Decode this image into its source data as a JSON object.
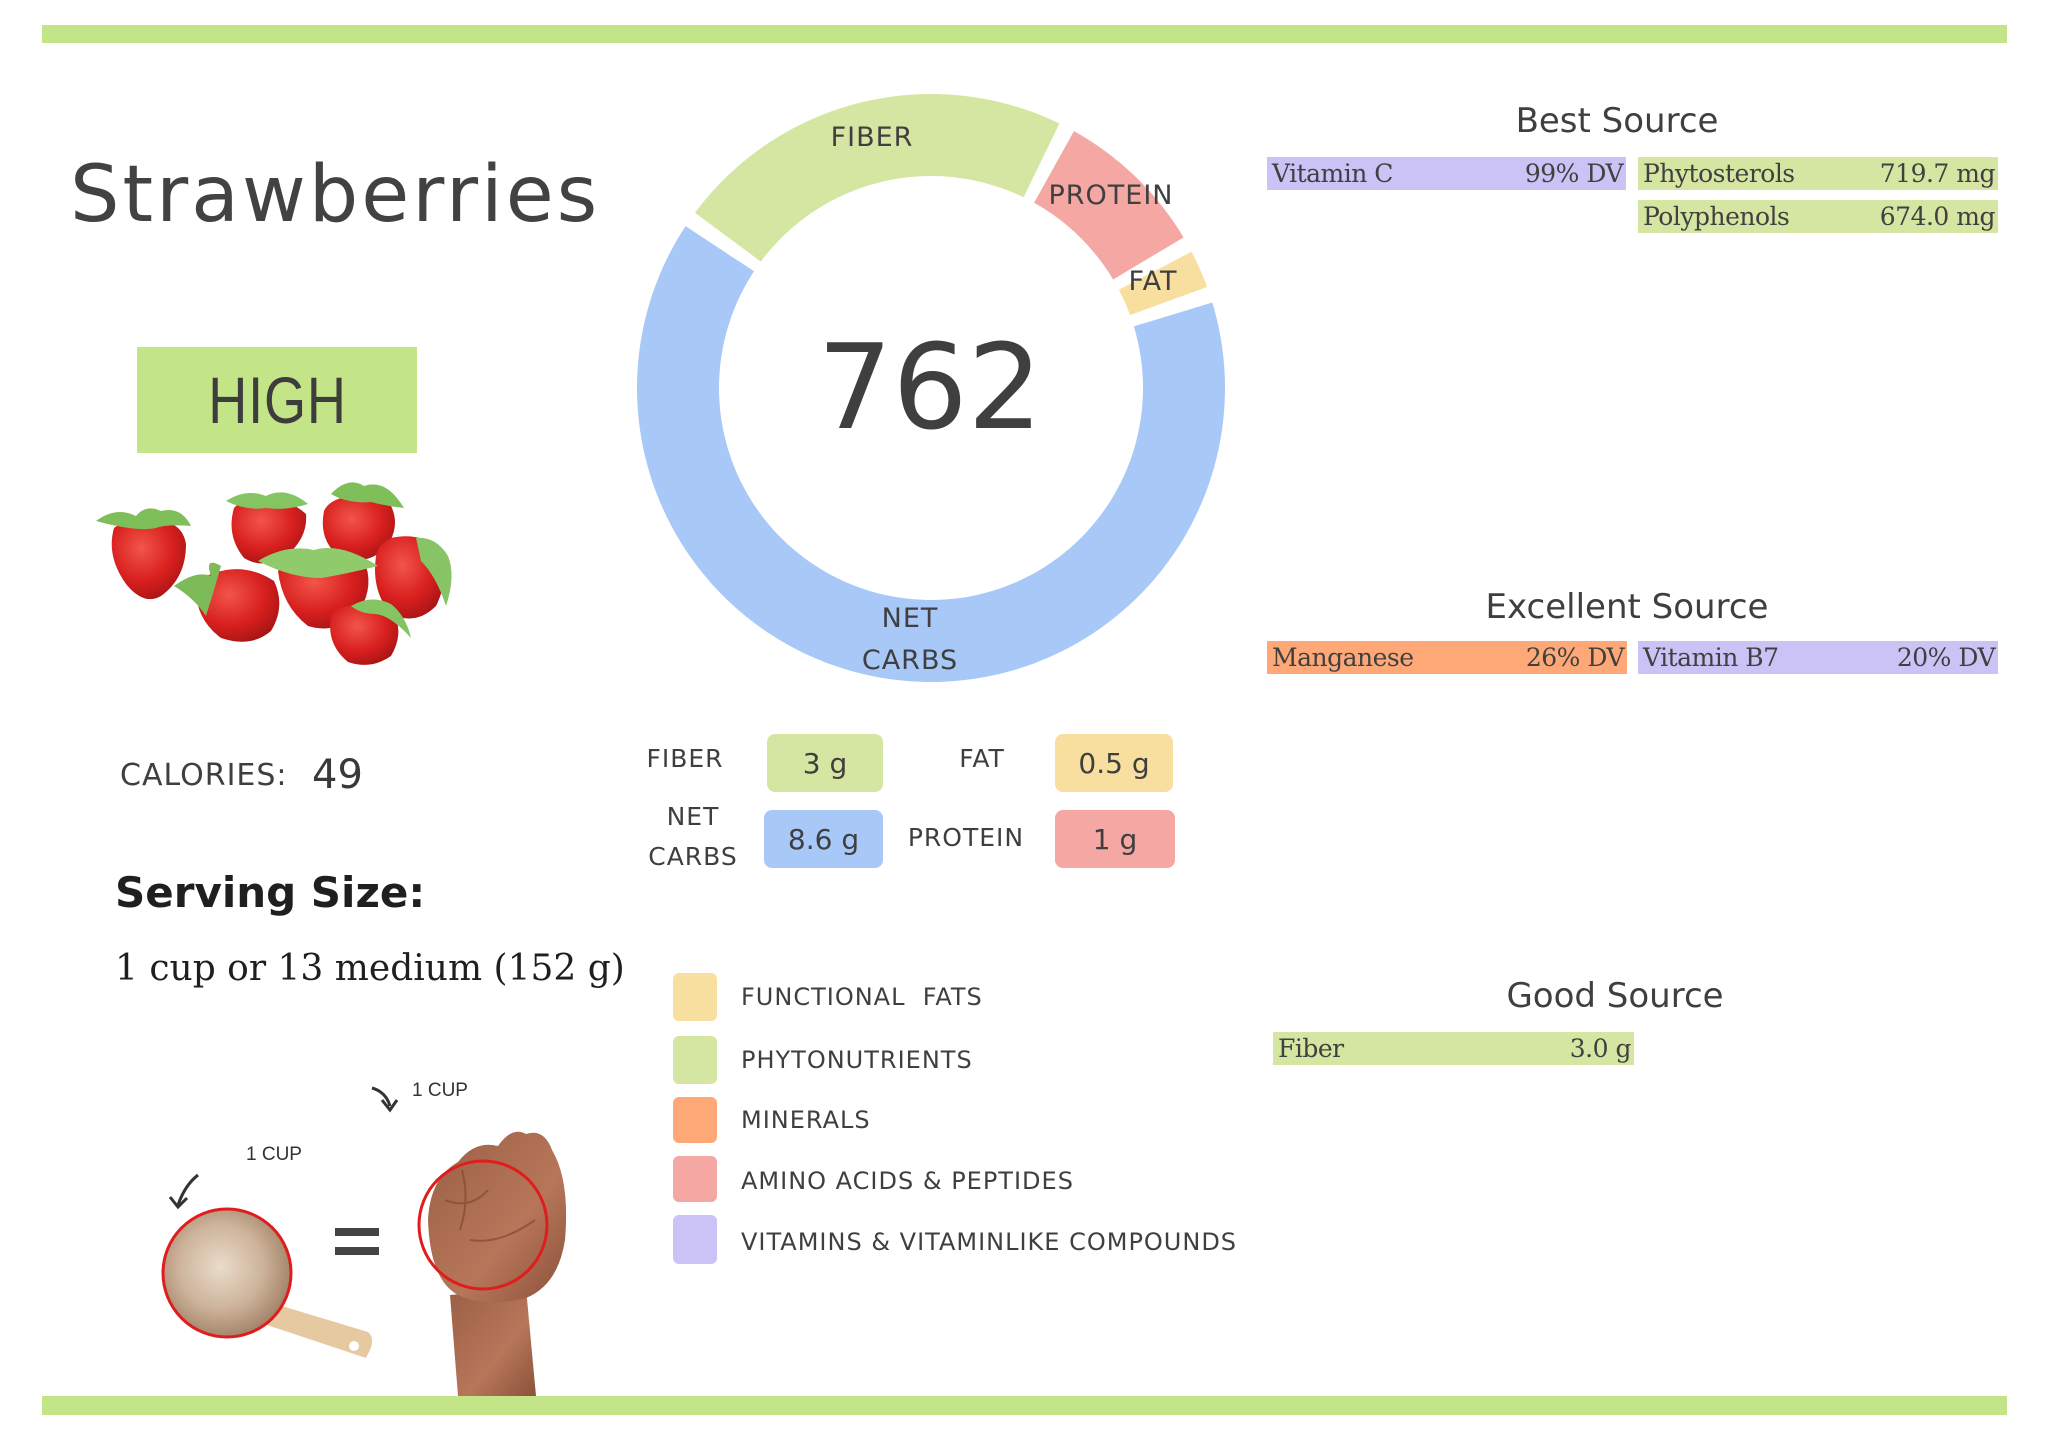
{
  "page": {
    "food_name": "Strawberries",
    "level_badge": "HIGH",
    "calories_label": "CALORIES:",
    "calories_value": "49",
    "serving_title": "Serving Size:",
    "serving_text": "1 cup or 13 medium (152 g)",
    "cup_label_left": "1 CUP",
    "cup_label_right": "1 CUP",
    "equals": "="
  },
  "colors": {
    "accent_bar": "#c4e587",
    "fiber": "#d5e6a2",
    "net_carbs": "#a8c8f7",
    "protein": "#f4a7a3",
    "fat": "#f8df9f",
    "minerals": "#fea877",
    "vitamins": "#cbc2f6",
    "phytonutrients": "#d5e6a2",
    "functional_fats": "#f8df9f",
    "amino_acids": "#f4a7a3"
  },
  "donut": {
    "center_value": "762",
    "segments": [
      {
        "label": "NET CARBS",
        "label_lines": [
          "NET",
          "CARBS"
        ],
        "start_deg": 71.5,
        "end_deg": 305,
        "color": "#a8c8f7"
      },
      {
        "label": "FIBER",
        "label_lines": [
          "FIBER"
        ],
        "start_deg": 305,
        "end_deg": 387.5,
        "color": "#d5e6a2"
      },
      {
        "label": "PROTEIN",
        "label_lines": [
          "PROTEIN"
        ],
        "start_deg": 27.5,
        "end_deg": 60.8,
        "color": "#f4a7a3"
      },
      {
        "label": "FAT",
        "label_lines": [
          "FAT"
        ],
        "start_deg": 60.8,
        "end_deg": 71.5,
        "color": "#f8df9f"
      }
    ]
  },
  "macros": {
    "fiber": {
      "label": "FIBER",
      "value": "3 g"
    },
    "fat": {
      "label": "FAT",
      "value": "0.5 g"
    },
    "net_carbs": {
      "label_line1": "NET",
      "label_line2": "CARBS",
      "value": "8.6 g"
    },
    "protein": {
      "label": "PROTEIN",
      "value": "1 g"
    }
  },
  "legend": [
    {
      "label": "FUNCTIONAL  FATS",
      "color": "#f8df9f"
    },
    {
      "label": "PHYTONUTRIENTS",
      "color": "#d5e6a2"
    },
    {
      "label": "MINERALS",
      "color": "#fea877"
    },
    {
      "label": "AMINO ACIDS & PEPTIDES",
      "color": "#f4a7a3"
    },
    {
      "label": "VITAMINS & VITAMINLIKE COMPOUNDS",
      "color": "#cbc2f6"
    }
  ],
  "sources": {
    "best": {
      "title": "Best Source",
      "items": [
        {
          "name": "Vitamin C",
          "value": "99% DV",
          "category": "vitamins"
        },
        {
          "name": "Phytosterols",
          "value": "719.7 mg",
          "category": "phytonutrients"
        },
        {
          "name": "Polyphenols",
          "value": "674.0 mg",
          "category": "phytonutrients"
        }
      ]
    },
    "excellent": {
      "title": "Excellent Source",
      "items": [
        {
          "name": "Manganese",
          "value": "26% DV",
          "category": "minerals"
        },
        {
          "name": "Vitamin B7",
          "value": "20% DV",
          "category": "vitamins"
        }
      ]
    },
    "good": {
      "title": "Good Source",
      "items": [
        {
          "name": "Fiber",
          "value": "3.0 g",
          "category": "phytonutrients"
        }
      ]
    }
  },
  "chart_data": {
    "type": "pie",
    "title": "762",
    "categories": [
      "NET CARBS",
      "FIBER",
      "PROTEIN",
      "FAT"
    ],
    "values_g": [
      8.6,
      3,
      1,
      0.5
    ],
    "approx_share_deg": [
      233.5,
      82.5,
      33.3,
      10.7
    ],
    "colors": [
      "#a8c8f7",
      "#d5e6a2",
      "#f4a7a3",
      "#f8df9f"
    ]
  }
}
